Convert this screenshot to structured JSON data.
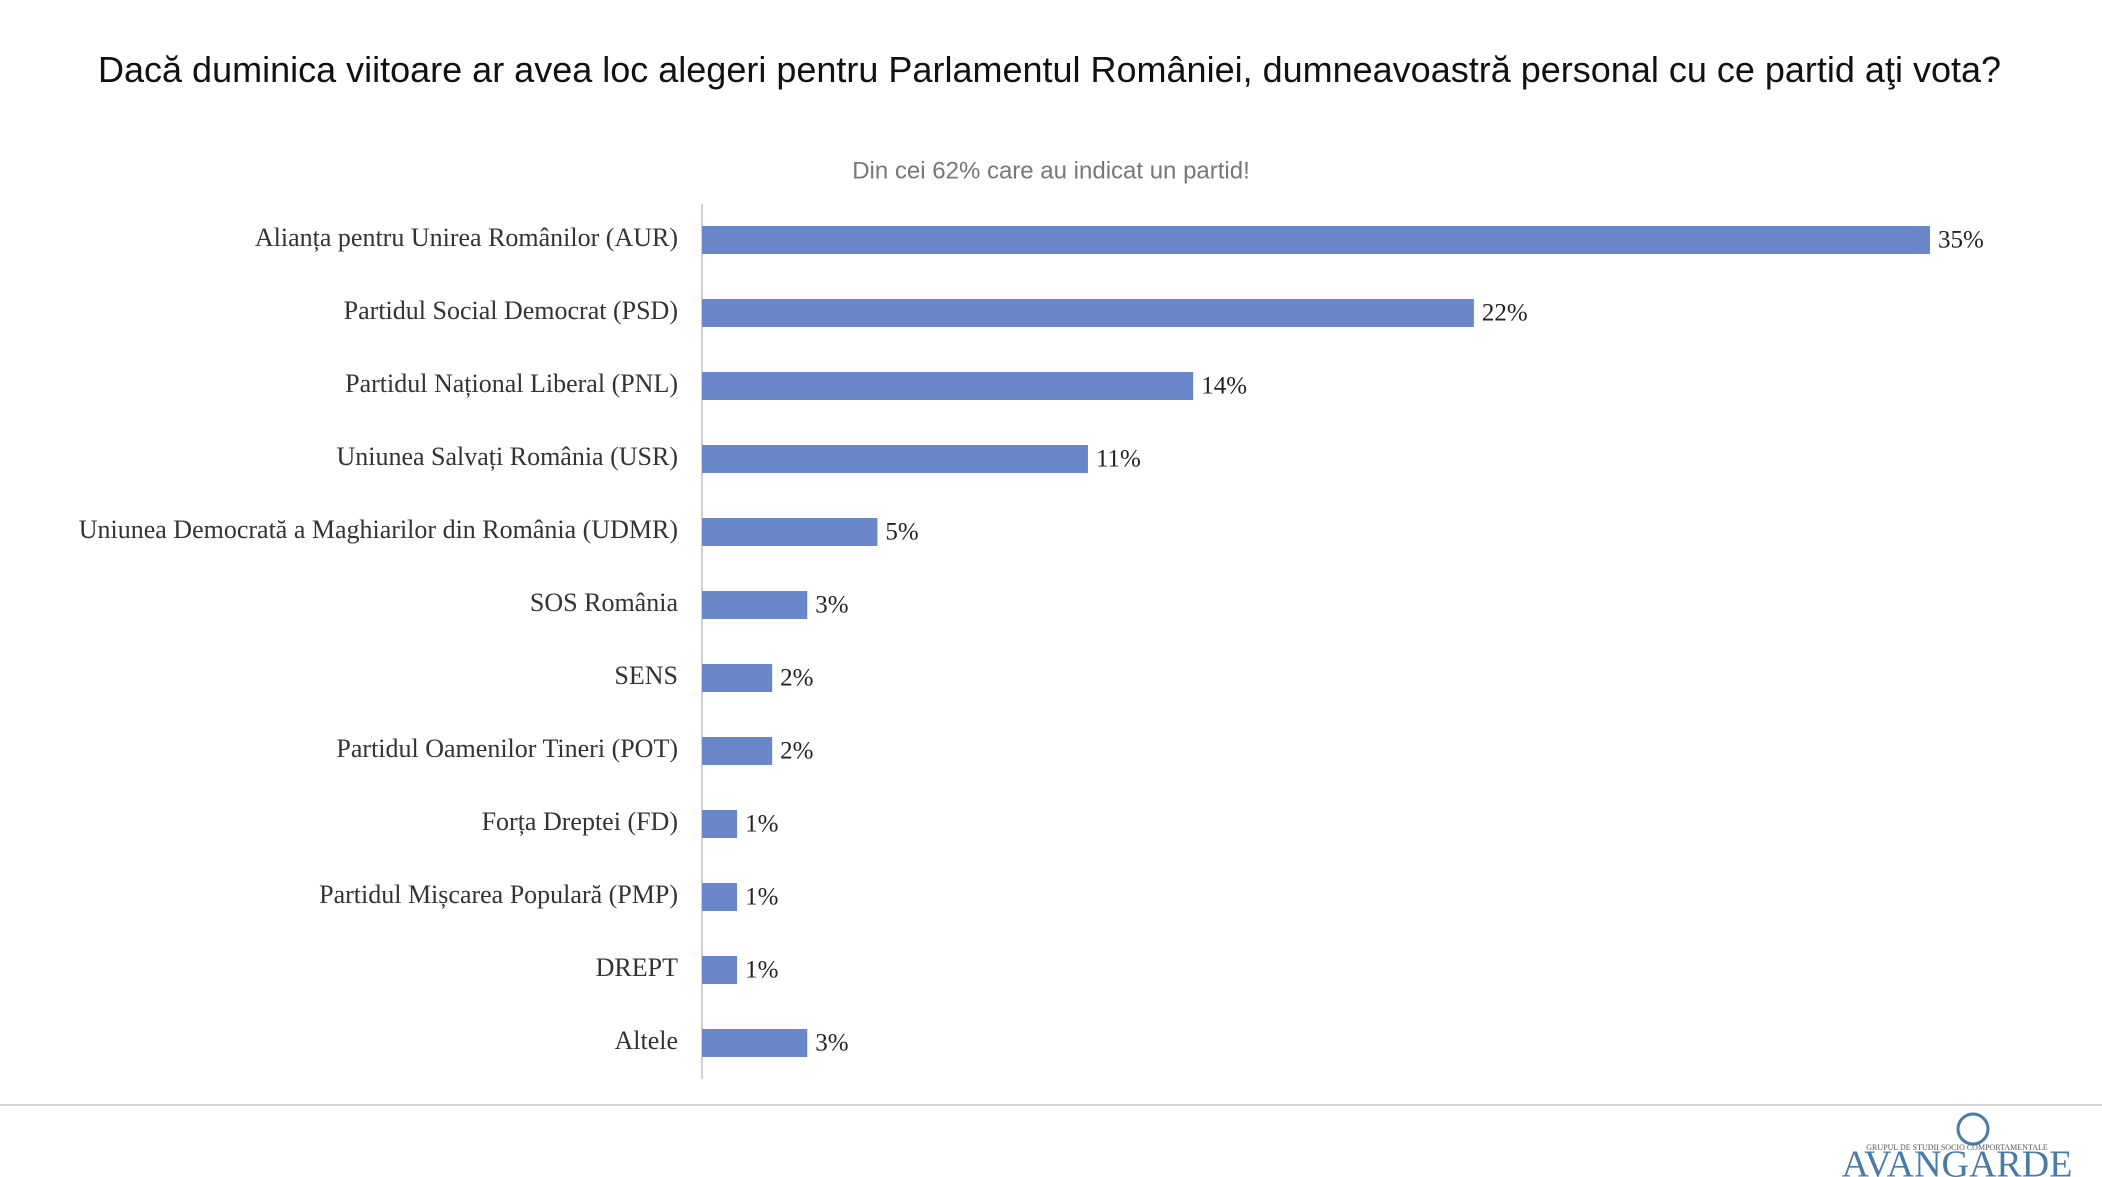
{
  "chart_data": {
    "type": "barh",
    "title": "Dacă duminica viitoare ar avea loc alegeri pentru Parlamentul României, dumneavoastră personal cu ce partid aţi vota?",
    "subtitle": "Din cei 62% care au indicat un partid!",
    "categories": [
      "Alianța pentru Unirea Românilor (AUR)",
      "Partidul Social Democrat (PSD)",
      "Partidul Național Liberal (PNL)",
      "Uniunea Salvați România (USR)",
      "Uniunea Democrată a Maghiarilor din România (UDMR)",
      "SOS România",
      "SENS",
      "Partidul Oamenilor Tineri (POT)",
      "Forța Dreptei (FD)",
      "Partidul Mișcarea Populară (PMP)",
      "DREPT",
      "Altele"
    ],
    "values": [
      35,
      22,
      14,
      11,
      5,
      3,
      2,
      2,
      1,
      1,
      1,
      3
    ],
    "value_labels": [
      "35%",
      "22%",
      "14%",
      "11%",
      "5%",
      "3%",
      "2%",
      "2%",
      "1%",
      "1%",
      "1%",
      "3%"
    ],
    "color": "#6a87c9"
  },
  "footer": {
    "tagline": "GRUPUL DE STUDII SOCIO COMPORTAMENTALE",
    "logo": "AVANGARDE"
  }
}
